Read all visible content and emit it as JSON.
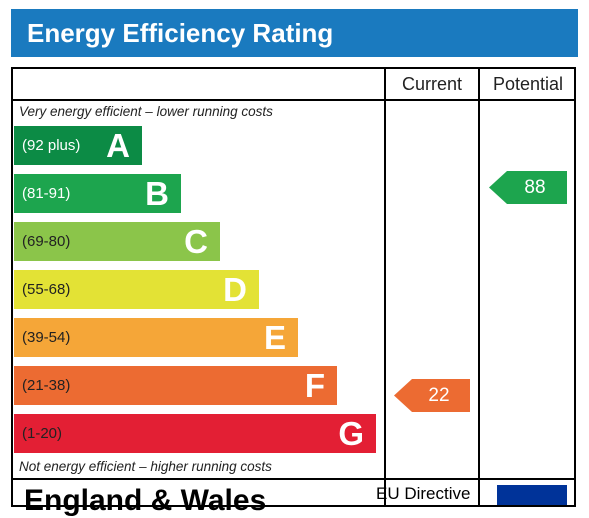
{
  "header": {
    "title": "Energy Efficiency Rating"
  },
  "columns": {
    "current": "Current",
    "potential": "Potential"
  },
  "notes": {
    "top": "Very energy efficient – lower running costs",
    "bottom": "Not energy efficient – higher running costs"
  },
  "chart_data": {
    "type": "bar",
    "categories": [
      "A",
      "B",
      "C",
      "D",
      "E",
      "F",
      "G"
    ],
    "bands": [
      {
        "letter": "A",
        "range": "(92 plus)",
        "color": "#0c8b45"
      },
      {
        "letter": "B",
        "range": "(81-91)",
        "color": "#1da54e"
      },
      {
        "letter": "C",
        "range": "(69-80)",
        "color": "#8bc54a"
      },
      {
        "letter": "D",
        "range": "(55-68)",
        "color": "#e3e235"
      },
      {
        "letter": "E",
        "range": "(39-54)",
        "color": "#f5a638"
      },
      {
        "letter": "F",
        "range": "(21-38)",
        "color": "#ec6b32"
      },
      {
        "letter": "G",
        "range": "(1-20)",
        "color": "#e31f34"
      }
    ],
    "current": {
      "value": 22,
      "band": "F",
      "color": "#ec6b32"
    },
    "potential": {
      "value": 88,
      "band": "B",
      "color": "#1da54e"
    }
  },
  "footer": {
    "region": "England & Wales",
    "directive": "EU Directive"
  },
  "icons": {
    "flag": "eu-flag-icon"
  }
}
